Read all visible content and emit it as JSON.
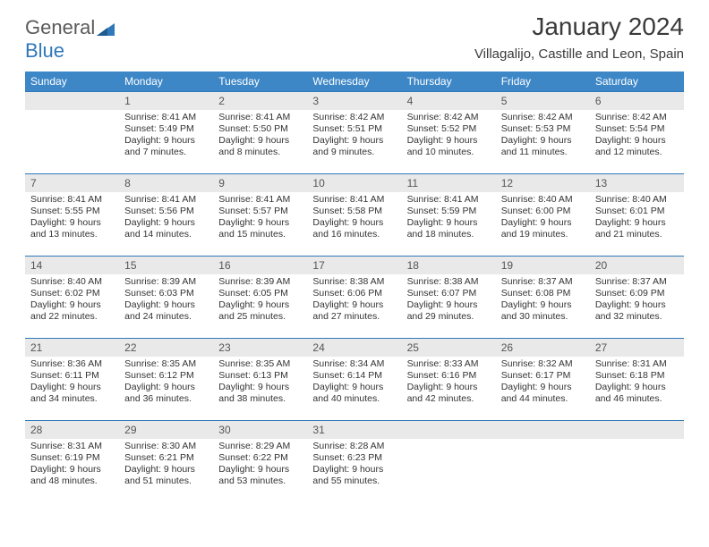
{
  "logo": {
    "word1": "General",
    "word2": "Blue"
  },
  "title": "January 2024",
  "subtitle": "Villagalijo, Castille and Leon, Spain",
  "headerColor": "#3d87c7",
  "accentColor": "#2f78b9",
  "days": [
    "Sunday",
    "Monday",
    "Tuesday",
    "Wednesday",
    "Thursday",
    "Friday",
    "Saturday"
  ],
  "weeks": [
    [
      null,
      {
        "n": "1",
        "sr": "8:41 AM",
        "ss": "5:49 PM",
        "dl": "9 hours and 7 minutes."
      },
      {
        "n": "2",
        "sr": "8:41 AM",
        "ss": "5:50 PM",
        "dl": "9 hours and 8 minutes."
      },
      {
        "n": "3",
        "sr": "8:42 AM",
        "ss": "5:51 PM",
        "dl": "9 hours and 9 minutes."
      },
      {
        "n": "4",
        "sr": "8:42 AM",
        "ss": "5:52 PM",
        "dl": "9 hours and 10 minutes."
      },
      {
        "n": "5",
        "sr": "8:42 AM",
        "ss": "5:53 PM",
        "dl": "9 hours and 11 minutes."
      },
      {
        "n": "6",
        "sr": "8:42 AM",
        "ss": "5:54 PM",
        "dl": "9 hours and 12 minutes."
      }
    ],
    [
      {
        "n": "7",
        "sr": "8:41 AM",
        "ss": "5:55 PM",
        "dl": "9 hours and 13 minutes."
      },
      {
        "n": "8",
        "sr": "8:41 AM",
        "ss": "5:56 PM",
        "dl": "9 hours and 14 minutes."
      },
      {
        "n": "9",
        "sr": "8:41 AM",
        "ss": "5:57 PM",
        "dl": "9 hours and 15 minutes."
      },
      {
        "n": "10",
        "sr": "8:41 AM",
        "ss": "5:58 PM",
        "dl": "9 hours and 16 minutes."
      },
      {
        "n": "11",
        "sr": "8:41 AM",
        "ss": "5:59 PM",
        "dl": "9 hours and 18 minutes."
      },
      {
        "n": "12",
        "sr": "8:40 AM",
        "ss": "6:00 PM",
        "dl": "9 hours and 19 minutes."
      },
      {
        "n": "13",
        "sr": "8:40 AM",
        "ss": "6:01 PM",
        "dl": "9 hours and 21 minutes."
      }
    ],
    [
      {
        "n": "14",
        "sr": "8:40 AM",
        "ss": "6:02 PM",
        "dl": "9 hours and 22 minutes."
      },
      {
        "n": "15",
        "sr": "8:39 AM",
        "ss": "6:03 PM",
        "dl": "9 hours and 24 minutes."
      },
      {
        "n": "16",
        "sr": "8:39 AM",
        "ss": "6:05 PM",
        "dl": "9 hours and 25 minutes."
      },
      {
        "n": "17",
        "sr": "8:38 AM",
        "ss": "6:06 PM",
        "dl": "9 hours and 27 minutes."
      },
      {
        "n": "18",
        "sr": "8:38 AM",
        "ss": "6:07 PM",
        "dl": "9 hours and 29 minutes."
      },
      {
        "n": "19",
        "sr": "8:37 AM",
        "ss": "6:08 PM",
        "dl": "9 hours and 30 minutes."
      },
      {
        "n": "20",
        "sr": "8:37 AM",
        "ss": "6:09 PM",
        "dl": "9 hours and 32 minutes."
      }
    ],
    [
      {
        "n": "21",
        "sr": "8:36 AM",
        "ss": "6:11 PM",
        "dl": "9 hours and 34 minutes."
      },
      {
        "n": "22",
        "sr": "8:35 AM",
        "ss": "6:12 PM",
        "dl": "9 hours and 36 minutes."
      },
      {
        "n": "23",
        "sr": "8:35 AM",
        "ss": "6:13 PM",
        "dl": "9 hours and 38 minutes."
      },
      {
        "n": "24",
        "sr": "8:34 AM",
        "ss": "6:14 PM",
        "dl": "9 hours and 40 minutes."
      },
      {
        "n": "25",
        "sr": "8:33 AM",
        "ss": "6:16 PM",
        "dl": "9 hours and 42 minutes."
      },
      {
        "n": "26",
        "sr": "8:32 AM",
        "ss": "6:17 PM",
        "dl": "9 hours and 44 minutes."
      },
      {
        "n": "27",
        "sr": "8:31 AM",
        "ss": "6:18 PM",
        "dl": "9 hours and 46 minutes."
      }
    ],
    [
      {
        "n": "28",
        "sr": "8:31 AM",
        "ss": "6:19 PM",
        "dl": "9 hours and 48 minutes."
      },
      {
        "n": "29",
        "sr": "8:30 AM",
        "ss": "6:21 PM",
        "dl": "9 hours and 51 minutes."
      },
      {
        "n": "30",
        "sr": "8:29 AM",
        "ss": "6:22 PM",
        "dl": "9 hours and 53 minutes."
      },
      {
        "n": "31",
        "sr": "8:28 AM",
        "ss": "6:23 PM",
        "dl": "9 hours and 55 minutes."
      },
      null,
      null,
      null
    ]
  ],
  "labels": {
    "sunrise": "Sunrise:",
    "sunset": "Sunset:",
    "daylight": "Daylight:"
  }
}
